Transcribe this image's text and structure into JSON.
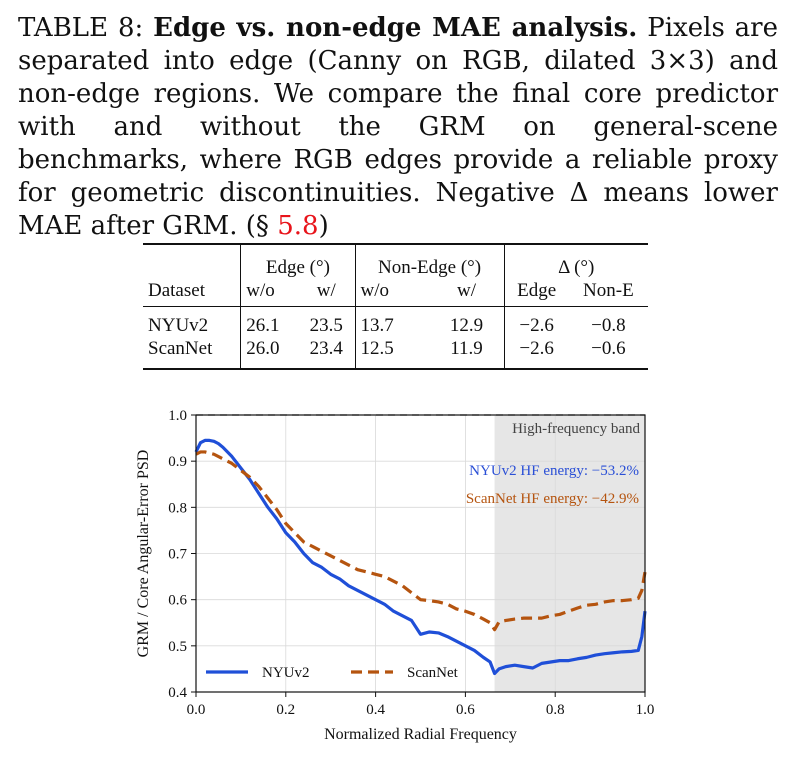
{
  "caption": {
    "label": "TABLE 8:",
    "title": "Edge vs. non-edge MAE analysis.",
    "body_before_ref": "Pixels are separated into edge (Canny on RGB, dilated 3×3) and non-edge regions. We compare the final core predictor with and without the GRM on general-scene benchmarks, where RGB edges provide a reliable proxy for geometric discontinuities. Negative Δ means lower MAE after GRM. (§",
    "ref": "5.8",
    "close": ")"
  },
  "table": {
    "group_headers": {
      "edge": "Edge (°)",
      "non_edge": "Non-Edge (°)",
      "delta": "Δ (°)"
    },
    "sub_headers": {
      "dataset": "Dataset",
      "edge_wo": "w/o",
      "edge_w": "w/",
      "nonedge_wo": "w/o",
      "nonedge_w": "w/",
      "delta_edge": "Edge",
      "delta_nonedge": "Non-E"
    },
    "rows": [
      {
        "dataset": "NYUv2",
        "edge_wo": "26.1",
        "edge_w": "23.5",
        "nonedge_wo": "13.7",
        "nonedge_w": "12.9",
        "delta_edge": "−2.6",
        "delta_nonedge": "−0.8"
      },
      {
        "dataset": "ScanNet",
        "edge_wo": "26.0",
        "edge_w": "23.4",
        "nonedge_wo": "12.5",
        "nonedge_w": "11.9",
        "delta_edge": "−2.6",
        "delta_nonedge": "−0.6"
      }
    ]
  },
  "chart_data": {
    "type": "line",
    "xlabel": "Normalized Radial Frequency",
    "ylabel": "GRM / Core Angular-Error PSD",
    "xlim": [
      0.0,
      1.0
    ],
    "ylim": [
      0.4,
      1.0
    ],
    "xticks": [
      "0.0",
      "0.2",
      "0.4",
      "0.6",
      "0.8",
      "1.0"
    ],
    "yticks": [
      "0.4",
      "0.5",
      "0.6",
      "0.7",
      "0.8",
      "0.9",
      "1.0"
    ],
    "grid": true,
    "reference_line": 1.0,
    "band": {
      "label": "High-frequency band",
      "start": 0.665,
      "end": 1.0
    },
    "annotations": [
      {
        "text": "NYUv2 HF energy: −53.2%",
        "color": "#2a4fd6"
      },
      {
        "text": "ScanNet HF energy: −42.9%",
        "color": "#b5540f"
      }
    ],
    "legend_position": "bottom-left",
    "series": [
      {
        "name": "NYUv2",
        "color": "#1f4fd8",
        "style": "solid",
        "x": [
          0.0,
          0.01,
          0.02,
          0.03,
          0.04,
          0.05,
          0.06,
          0.08,
          0.1,
          0.12,
          0.14,
          0.16,
          0.18,
          0.2,
          0.22,
          0.24,
          0.26,
          0.28,
          0.3,
          0.32,
          0.34,
          0.36,
          0.38,
          0.4,
          0.42,
          0.44,
          0.46,
          0.48,
          0.5,
          0.52,
          0.54,
          0.56,
          0.58,
          0.6,
          0.62,
          0.64,
          0.655,
          0.665,
          0.675,
          0.69,
          0.71,
          0.73,
          0.75,
          0.77,
          0.79,
          0.81,
          0.83,
          0.85,
          0.87,
          0.89,
          0.91,
          0.93,
          0.95,
          0.97,
          0.985,
          0.993,
          1.0
        ],
        "y": [
          0.92,
          0.94,
          0.945,
          0.945,
          0.943,
          0.938,
          0.93,
          0.91,
          0.885,
          0.86,
          0.83,
          0.8,
          0.775,
          0.745,
          0.725,
          0.7,
          0.68,
          0.67,
          0.655,
          0.645,
          0.63,
          0.62,
          0.61,
          0.6,
          0.59,
          0.575,
          0.565,
          0.555,
          0.525,
          0.53,
          0.528,
          0.52,
          0.51,
          0.5,
          0.49,
          0.475,
          0.465,
          0.44,
          0.45,
          0.455,
          0.458,
          0.455,
          0.452,
          0.462,
          0.465,
          0.468,
          0.468,
          0.472,
          0.475,
          0.48,
          0.483,
          0.485,
          0.487,
          0.488,
          0.49,
          0.52,
          0.575
        ]
      },
      {
        "name": "ScanNet",
        "color": "#b5540f",
        "style": "dashed",
        "x": [
          0.0,
          0.01,
          0.02,
          0.04,
          0.06,
          0.08,
          0.1,
          0.12,
          0.14,
          0.16,
          0.18,
          0.2,
          0.22,
          0.24,
          0.26,
          0.28,
          0.3,
          0.32,
          0.34,
          0.36,
          0.38,
          0.4,
          0.42,
          0.44,
          0.46,
          0.48,
          0.5,
          0.52,
          0.54,
          0.56,
          0.58,
          0.6,
          0.62,
          0.64,
          0.655,
          0.665,
          0.675,
          0.69,
          0.71,
          0.73,
          0.75,
          0.77,
          0.79,
          0.81,
          0.83,
          0.85,
          0.87,
          0.89,
          0.91,
          0.93,
          0.95,
          0.97,
          0.985,
          0.993,
          1.0
        ],
        "y": [
          0.915,
          0.92,
          0.92,
          0.915,
          0.905,
          0.895,
          0.88,
          0.865,
          0.845,
          0.82,
          0.795,
          0.765,
          0.745,
          0.725,
          0.715,
          0.705,
          0.695,
          0.685,
          0.675,
          0.665,
          0.66,
          0.655,
          0.65,
          0.64,
          0.63,
          0.615,
          0.6,
          0.598,
          0.595,
          0.59,
          0.58,
          0.575,
          0.568,
          0.558,
          0.55,
          0.535,
          0.552,
          0.555,
          0.558,
          0.56,
          0.56,
          0.56,
          0.565,
          0.568,
          0.575,
          0.582,
          0.588,
          0.59,
          0.595,
          0.598,
          0.598,
          0.6,
          0.603,
          0.62,
          0.66
        ]
      }
    ]
  }
}
